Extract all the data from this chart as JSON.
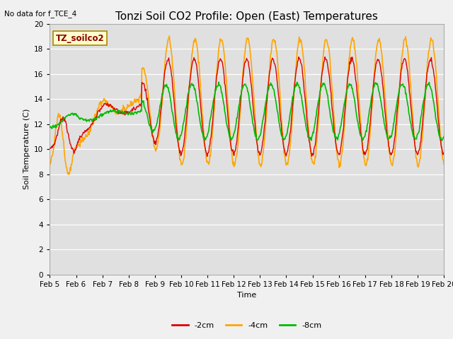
{
  "title": "Tonzi Soil CO2 Profile: Open (East) Temperatures",
  "no_data_text": "No data for f_TCE_4",
  "subtitle_box": "TZ_soilco2",
  "ylabel": "Soil Temperature (C)",
  "xlabel": "Time",
  "ylim": [
    0,
    20
  ],
  "ytick_step": 2,
  "bg_color": "#e0e0e0",
  "fig_bg": "#f0f0f0",
  "line_colors": {
    "-2cm": "#dd0000",
    "-4cm": "#ffa500",
    "-8cm": "#00bb00"
  },
  "line_widths": {
    "-2cm": 1.0,
    "-4cm": 1.2,
    "-8cm": 1.2
  },
  "x_labels": [
    "Feb 5",
    "Feb 6",
    "Feb 7",
    "Feb 8",
    "Feb 9",
    "Feb 10",
    "Feb 11",
    "Feb 12",
    "Feb 13",
    "Feb 14",
    "Feb 15",
    "Feb 16",
    "Feb 17",
    "Feb 18",
    "Feb 19",
    "Feb 20"
  ],
  "title_fontsize": 11,
  "axis_fontsize": 8,
  "tick_fontsize": 7.5,
  "legend_fontsize": 8
}
